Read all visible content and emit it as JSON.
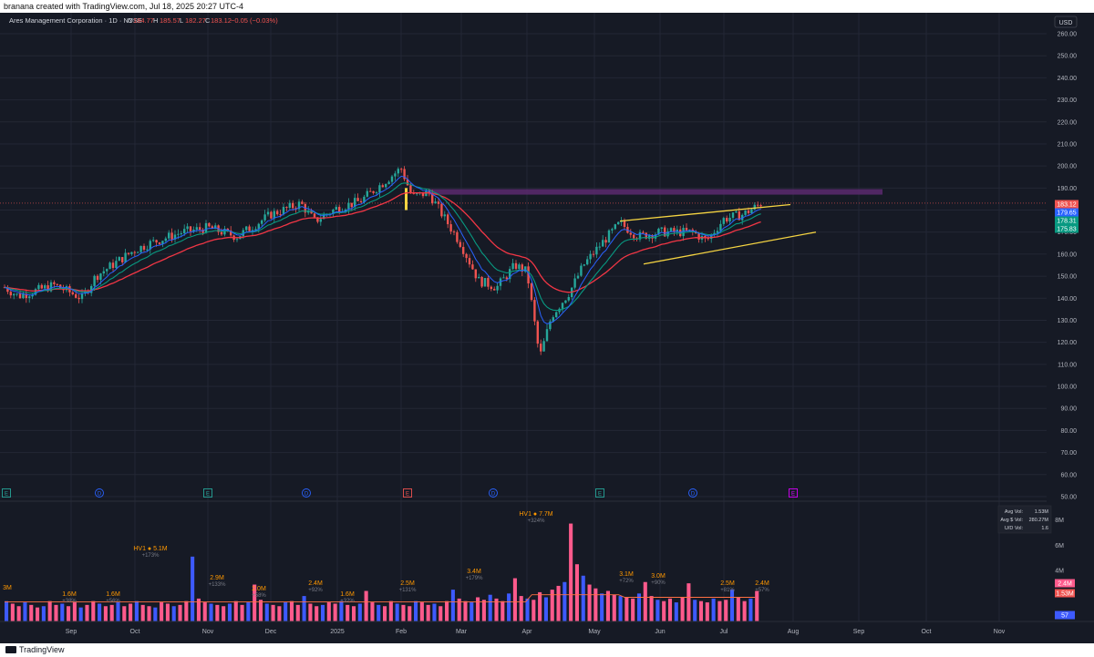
{
  "header": {
    "caption": "branana created with TradingView.com, Jul 18, 2025 20:27 UTC-4"
  },
  "legend": {
    "symbol": "Ares Management Corporation · 1D · NYSE",
    "o_label": "O",
    "o_value": "184.77",
    "h_label": "H",
    "h_value": "185.57",
    "l_label": "L",
    "l_value": "182.27",
    "c_label": "C",
    "c_value": "183.12",
    "change": "−0.05 (−0.03%)"
  },
  "currency": "USD",
  "footer": {
    "brand": "TradingView"
  },
  "colors": {
    "background": "#161a25",
    "up": "#26a69a",
    "down": "#ef5350",
    "ema_fast": "#2962ff",
    "ema_mid": "#089981",
    "ema_slow": "#f23645",
    "channel": "#f5d442",
    "zone": "#5b2a6e",
    "vol_blue": "#3d5afe",
    "vol_pink": "#ff5a8c"
  },
  "chart_data": [
    {
      "type": "candlestick",
      "yaxis": {
        "ticks": [
          "260.00",
          "250.00",
          "240.00",
          "230.00",
          "220.00",
          "210.00",
          "200.00",
          "190.00",
          "180.00",
          "170.00",
          "160.00",
          "150.00",
          "140.00",
          "130.00",
          "120.00",
          "110.00",
          "100.00",
          "90.00",
          "80.00",
          "70.00",
          "60.00",
          "50.00"
        ],
        "range": [
          50,
          265
        ]
      },
      "xaxis_ticks": [
        "Sep",
        "Oct",
        "Nov",
        "Dec",
        "2025",
        "Feb",
        "Mar",
        "Apr",
        "May",
        "Jun",
        "Jul",
        "Aug",
        "Sep",
        "Oct",
        "Nov"
      ],
      "price_labels": [
        {
          "value": "183.12",
          "color": "#ef5350"
        },
        {
          "value": "179.65",
          "color": "#2962ff"
        },
        {
          "value": "178.31",
          "color": "#089981"
        },
        {
          "value": "175.83",
          "color": "#089981"
        }
      ],
      "key_points": [
        {
          "date": "Aug 2024",
          "price": 145
        },
        {
          "date": "Sep 2024",
          "price": 142
        },
        {
          "date": "Oct 2024",
          "price": 165
        },
        {
          "date": "Nov 2024",
          "price": 172
        },
        {
          "date": "Dec 2024",
          "price": 178
        },
        {
          "date": "Jan 2025",
          "price": 180
        },
        {
          "date": "Feb 2025",
          "price": 199
        },
        {
          "date": "Feb 2025 (mid)",
          "price": 188
        },
        {
          "date": "Mar 2025",
          "price": 155
        },
        {
          "date": "Apr 2025 (low)",
          "price": 112
        },
        {
          "date": "Apr 2025 (end)",
          "price": 145
        },
        {
          "date": "May 2025",
          "price": 172
        },
        {
          "date": "Jun 2025",
          "price": 168
        },
        {
          "date": "Jul 2025",
          "price": 183
        }
      ],
      "event_markers": [
        {
          "label": "D"
        },
        {
          "label": "E"
        },
        {
          "label": "D"
        },
        {
          "label": "E"
        },
        {
          "label": "D"
        },
        {
          "label": "E"
        },
        {
          "label": "D"
        },
        {
          "label": "E"
        }
      ]
    },
    {
      "type": "bar",
      "name": "Volume",
      "yaxis_ticks": [
        "8M",
        "6M",
        "4M"
      ],
      "stats": [
        {
          "label": "Avg Vol:",
          "value": "1.53M"
        },
        {
          "label": "Avg $ Vol:",
          "value": "280.27M"
        },
        {
          "label": "U/D Vol:",
          "value": "1.6"
        }
      ],
      "right_labels": [
        {
          "value": "2.4M",
          "color": "#ff5a8c"
        },
        {
          "value": "1.53M",
          "color": "#ef5350"
        },
        {
          "value": "57",
          "color": "#3d5afe"
        }
      ],
      "annotations": [
        {
          "value": "3M",
          "pct": ""
        },
        {
          "value": "1.6M",
          "pct": "+38%"
        },
        {
          "value": "1.6M",
          "pct": "+56%"
        },
        {
          "value": "HV1 ● 5.1M",
          "pct": "+173%"
        },
        {
          "value": "2.9M",
          "pct": "+133%"
        },
        {
          "value": "2.0M",
          "pct": "+58%"
        },
        {
          "value": "2.4M",
          "pct": "+92%"
        },
        {
          "value": "1.6M",
          "pct": "+32%"
        },
        {
          "value": "2.5M",
          "pct": "+131%"
        },
        {
          "value": "3.4M",
          "pct": "+179%"
        },
        {
          "value": "HV1 ● 7.7M",
          "pct": "+324%"
        },
        {
          "value": "3.1M",
          "pct": "+72%"
        },
        {
          "value": "3.0M",
          "pct": "+90%"
        },
        {
          "value": "2.5M",
          "pct": "+81%"
        },
        {
          "value": "2.4M",
          "pct": "+57%"
        }
      ],
      "approx_volume_m": [
        1.6,
        1.4,
        1.2,
        1.5,
        1.3,
        1.1,
        1.2,
        1.6,
        1.3,
        1.4,
        1.2,
        1.5,
        1.1,
        1.3,
        1.6,
        1.4,
        1.2,
        1.3,
        1.5,
        1.2,
        1.4,
        1.6,
        1.3,
        1.2,
        1.1,
        1.5,
        1.4,
        1.2,
        1.3,
        1.6,
        5.1,
        1.8,
        1.5,
        1.4,
        1.3,
        1.2,
        1.4,
        1.6,
        1.3,
        1.5,
        2.9,
        1.7,
        1.4,
        1.3,
        1.2,
        1.5,
        1.6,
        1.3,
        2.0,
        1.4,
        1.2,
        1.3,
        1.5,
        1.4,
        1.6,
        1.3,
        1.2,
        1.4,
        2.4,
        1.5,
        1.3,
        1.2,
        1.6,
        1.4,
        1.3,
        1.2,
        1.6,
        1.5,
        1.3,
        1.4,
        1.2,
        1.6,
        2.5,
        1.8,
        1.6,
        1.5,
        1.9,
        1.7,
        2.1,
        1.8,
        1.6,
        2.2,
        3.4,
        2.0,
        1.8,
        1.7,
        2.3,
        1.9,
        2.5,
        2.8,
        3.1,
        7.7,
        4.5,
        3.6,
        2.9,
        2.6,
        2.2,
        2.4,
        2.1,
        2.0,
        1.9,
        1.8,
        2.2,
        3.1,
        2.0,
        1.7,
        1.6,
        1.8,
        1.5,
        1.9,
        3.0,
        1.7,
        1.6,
        1.5,
        1.8,
        1.6,
        1.7,
        2.5,
        1.9,
        1.6,
        1.8,
        2.4
      ]
    }
  ]
}
